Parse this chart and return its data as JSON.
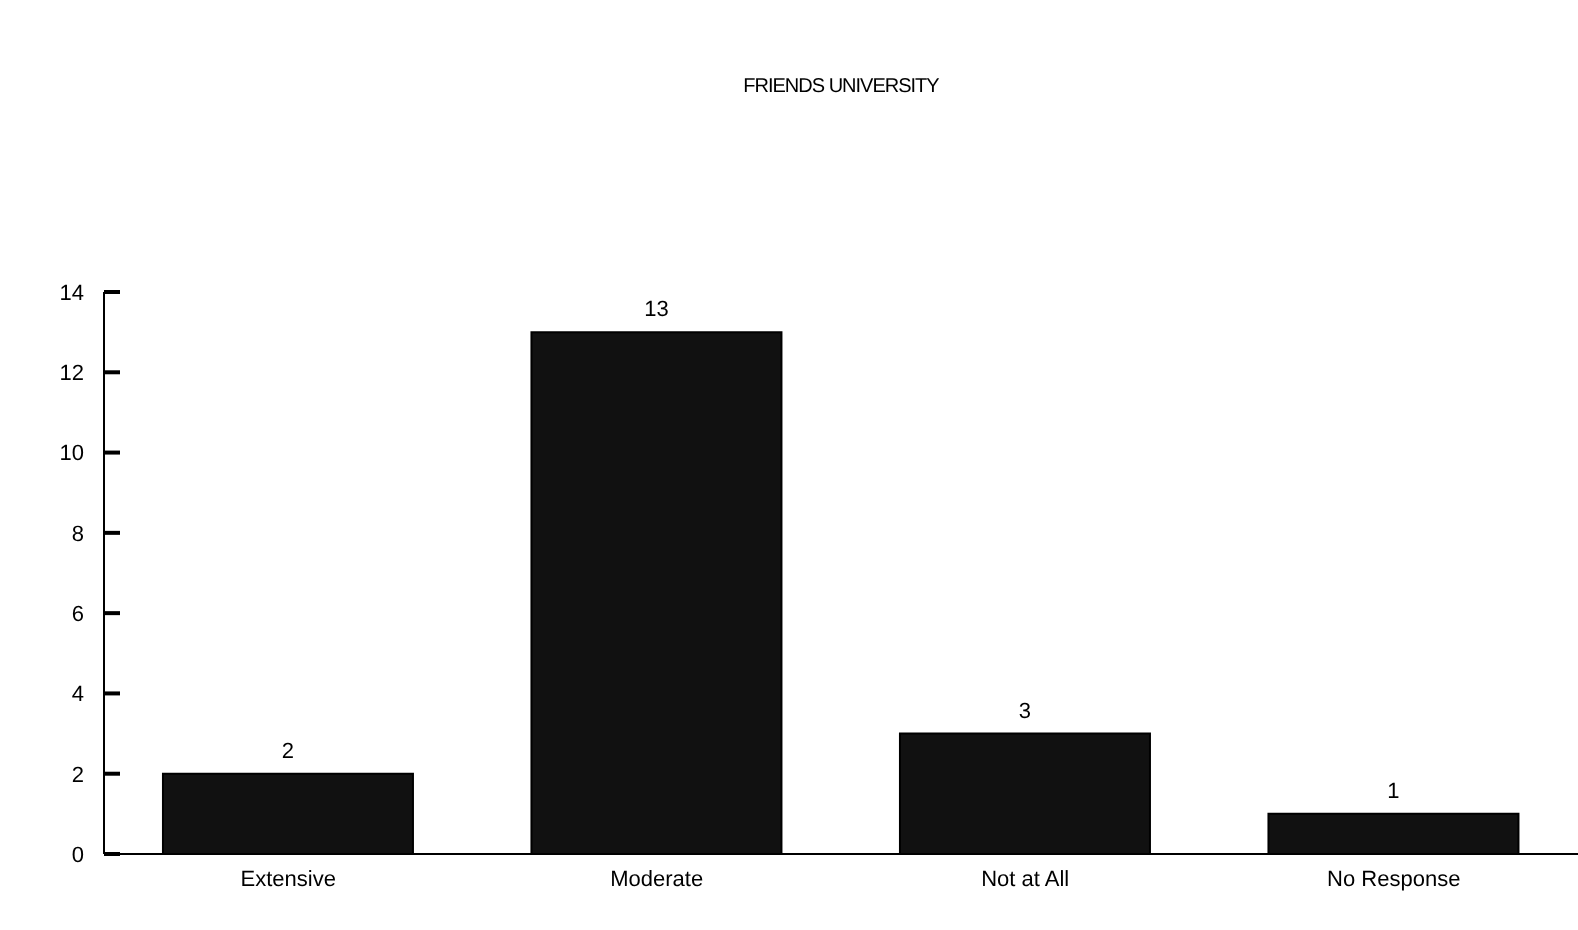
{
  "chart_data": {
    "type": "bar",
    "title": "FRIENDS UNIVERSITY",
    "categories": [
      "Extensive",
      "Moderate",
      "Not at All",
      "No Response"
    ],
    "values": [
      2,
      13,
      3,
      1
    ],
    "color": "#111111",
    "ylim": [
      0,
      14
    ],
    "yticks": [
      0,
      2,
      4,
      6,
      8,
      10,
      12,
      14
    ],
    "data_labels": true
  }
}
